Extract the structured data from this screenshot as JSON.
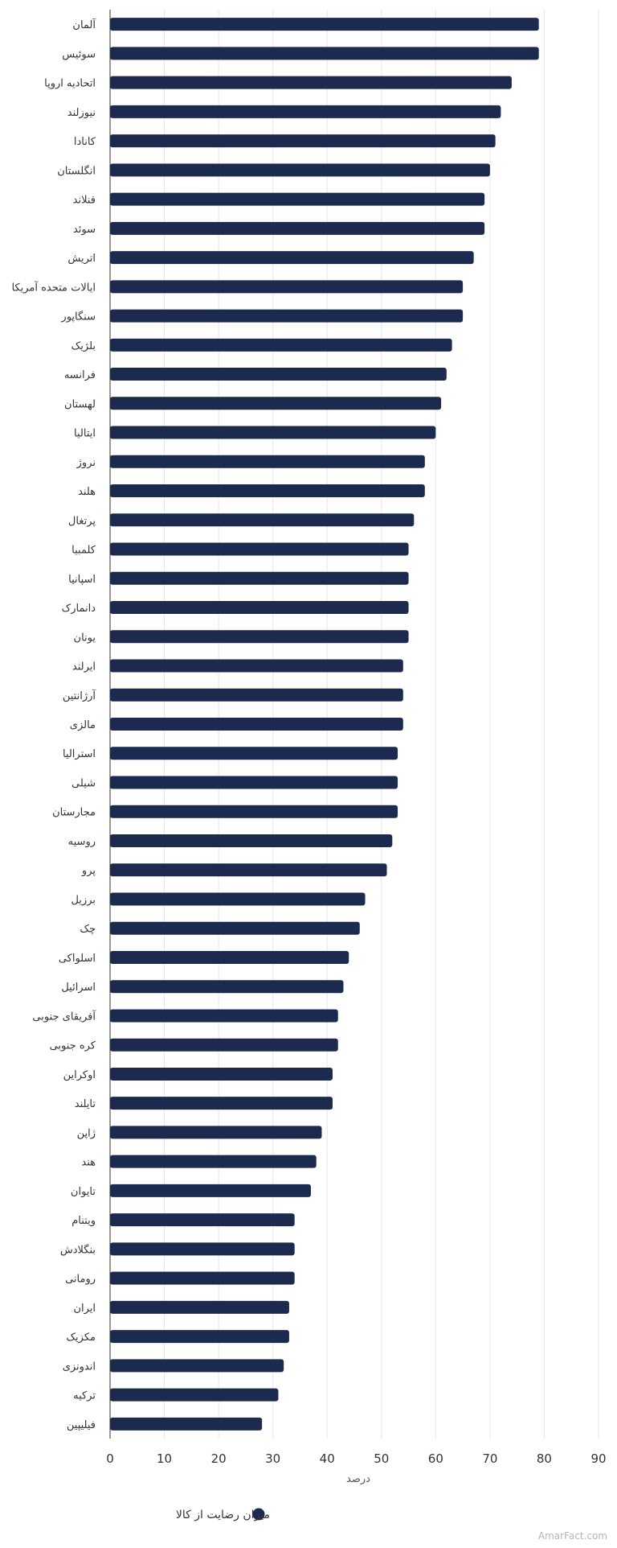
{
  "chart_data": {
    "type": "bar",
    "orientation": "horizontal",
    "categories": [
      "آلمان",
      "سوئیس",
      "اتحادیه اروپا",
      "نیوزلند",
      "کانادا",
      "انگلستان",
      "فنلاند",
      "سوئد",
      "اتریش",
      "ایالات متحده آمریکا",
      "سنگاپور",
      "بلژیک",
      "فرانسه",
      "لهستان",
      "ایتالیا",
      "نروژ",
      "هلند",
      "پرتغال",
      "کلمبیا",
      "اسپانیا",
      "دانمارک",
      "یونان",
      "ایرلند",
      "آرژانتین",
      "مالزی",
      "استرالیا",
      "شیلی",
      "مجارستان",
      "روسیه",
      "پرو",
      "برزیل",
      "چک",
      "اسلواکی",
      "اسرائیل",
      "آفریقای جنوبی",
      "کره جنوبی",
      "اوکراین",
      "تایلند",
      "ژاپن",
      "هند",
      "تایوان",
      "ویتنام",
      "بنگلادش",
      "رومانی",
      "ایران",
      "مکزیک",
      "اندونزی",
      "ترکیه",
      "فیلیپین"
    ],
    "series": [
      {
        "name": "میزان رضایت از کالا",
        "color": "#1c2a4f",
        "values": [
          79,
          79,
          74,
          72,
          71,
          70,
          69,
          69,
          67,
          65,
          65,
          63,
          62,
          61,
          60,
          58,
          58,
          56,
          55,
          55,
          55,
          55,
          54,
          54,
          54,
          53,
          53,
          53,
          52,
          51,
          47,
          46,
          44,
          43,
          42,
          42,
          41,
          41,
          39,
          38,
          37,
          34,
          34,
          34,
          33,
          33,
          32,
          31,
          28
        ]
      }
    ],
    "x_ticks": [
      0,
      10,
      20,
      30,
      40,
      50,
      60,
      70,
      80,
      90
    ],
    "xlim": [
      0,
      90
    ],
    "xlabel": "درصد",
    "ylabel": "",
    "title": "",
    "grid": true,
    "legend_position": "bottom-center",
    "colors": {
      "bar": "#1c2a4f",
      "grid": "#e6e6e6",
      "axis": "#333333",
      "watermark": "#b5b5b5"
    }
  },
  "watermark": "AmarFact.com"
}
